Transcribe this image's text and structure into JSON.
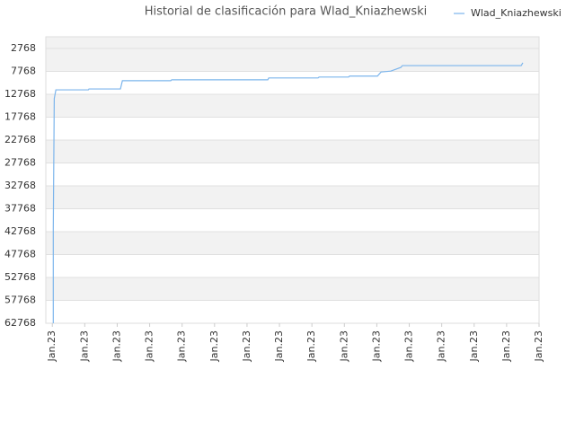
{
  "chart_data": {
    "type": "line",
    "title": "Historial de clasificación para Wlad_Kniazhewski",
    "xlim": [
      -0.2,
      15
    ],
    "xticks": [
      {
        "value": 0,
        "label": "Jan.23"
      },
      {
        "value": 1,
        "label": "Jan.23"
      },
      {
        "value": 2,
        "label": "Jan.23"
      },
      {
        "value": 3,
        "label": "Jan.23"
      },
      {
        "value": 4,
        "label": "Jan.23"
      },
      {
        "value": 5,
        "label": "Jan.23"
      },
      {
        "value": 6,
        "label": "Jan.23"
      },
      {
        "value": 7,
        "label": "Jan.23"
      },
      {
        "value": 8,
        "label": "Jan.23"
      },
      {
        "value": 9,
        "label": "Jan.23"
      },
      {
        "value": 10,
        "label": "Jan.23"
      },
      {
        "value": 11,
        "label": "Jan.23"
      },
      {
        "value": 12,
        "label": "Jan.23"
      },
      {
        "value": 13,
        "label": "Jan.23"
      },
      {
        "value": 14,
        "label": "Jan.23"
      },
      {
        "value": 15,
        "label": "Jan.23"
      }
    ],
    "ylim": [
      62768,
      218
    ],
    "yticks": [
      2768,
      7768,
      12768,
      17768,
      22768,
      27768,
      32768,
      37768,
      42768,
      47768,
      52768,
      57768,
      62768
    ],
    "grid": "alternating-bands",
    "legend": "top-right",
    "x": [
      0.03,
      0.03,
      0.06,
      0.11,
      1.11,
      1.13,
      2.1,
      2.16,
      3.65,
      3.68,
      6.64,
      6.67,
      8.19,
      8.22,
      9.13,
      9.16,
      10.02,
      10.13,
      10.43,
      10.74,
      10.79,
      14.45,
      14.5
    ],
    "series": [
      {
        "name": "Wlad_Kniazhewski",
        "color": "#7cb5ec",
        "values": [
          62768,
          42200,
          13700,
          11800,
          11800,
          11600,
          11600,
          9800,
          9800,
          9600,
          9600,
          9200,
          9200,
          9000,
          9000,
          8800,
          8800,
          7900,
          7700,
          6900,
          6500,
          6500,
          5900
        ]
      }
    ]
  }
}
